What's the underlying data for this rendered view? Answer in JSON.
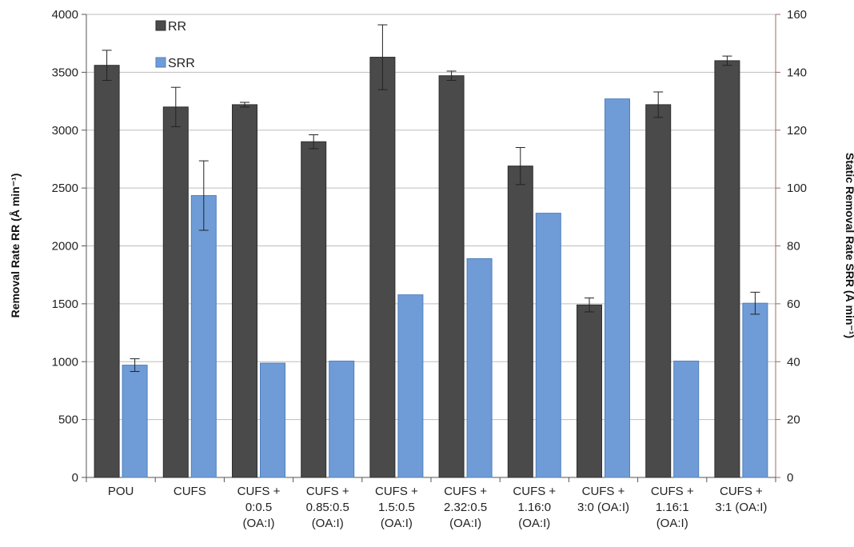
{
  "chart_data": {
    "type": "bar",
    "categories": [
      [
        "POU"
      ],
      [
        "CUFS"
      ],
      [
        "CUFS +",
        "0:0.5",
        "(OA:I)"
      ],
      [
        "CUFS +",
        "0.85:0.5",
        "(OA:I)"
      ],
      [
        "CUFS +",
        "1.5:0.5",
        "(OA:I)"
      ],
      [
        "CUFS +",
        "2.32:0.5",
        "(OA:I)"
      ],
      [
        "CUFS +",
        "1.16:0",
        "(OA:I)"
      ],
      [
        "CUFS +",
        "3:0 (OA:I)"
      ],
      [
        "CUFS +",
        "1.16:1",
        "(OA:I)"
      ],
      [
        "CUFS +",
        "3:1 (OA:I)"
      ]
    ],
    "series": [
      {
        "name": "RR",
        "axis": "left",
        "color": "#4a4a4a",
        "values": [
          3560,
          3200,
          3220,
          2900,
          3630,
          3470,
          2690,
          1490,
          3220,
          3600
        ],
        "errors": [
          130,
          170,
          20,
          60,
          280,
          40,
          160,
          60,
          110,
          40
        ]
      },
      {
        "name": "SRR",
        "axis": "right",
        "color": "#6f9cd6",
        "values": [
          38.8,
          97.4,
          39.5,
          40.2,
          63.1,
          75.6,
          91.3,
          130.8,
          40.2,
          60.2
        ],
        "errors": [
          2.2,
          12,
          0,
          0,
          0,
          0,
          0,
          0,
          0,
          3.8
        ]
      }
    ],
    "ylabel": "Removal Rate RR (Å min⁻¹)",
    "y2label": "Static Removal Rate SRR (Å min⁻¹)",
    "ylim": [
      0,
      4000
    ],
    "y2lim": [
      0,
      160
    ],
    "yticks": [
      "0",
      "500",
      "1000",
      "1500",
      "2000",
      "2500",
      "3000",
      "3500",
      "4000"
    ],
    "y2ticks": [
      "0",
      "20",
      "40",
      "60",
      "80",
      "100",
      "120",
      "140",
      "160"
    ],
    "grid": true,
    "legend_position": "top-left"
  }
}
